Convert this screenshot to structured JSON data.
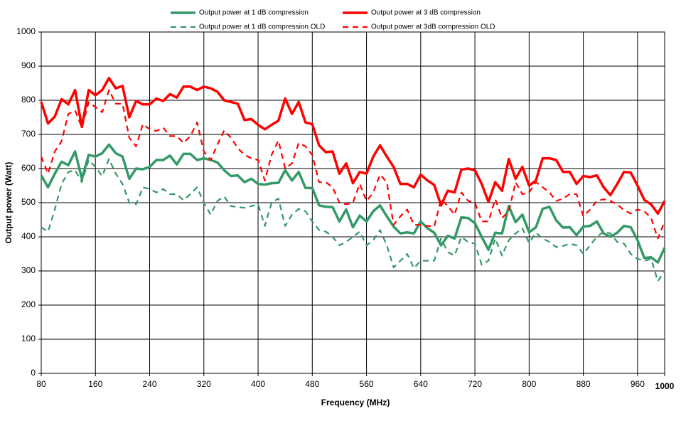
{
  "chart_data": {
    "type": "line",
    "xlabel": "Frequency (MHz)",
    "ylabel": "Output power (Watt)",
    "x": [
      80,
      90,
      100,
      110,
      120,
      130,
      140,
      150,
      160,
      170,
      180,
      190,
      200,
      210,
      220,
      230,
      240,
      250,
      260,
      270,
      280,
      290,
      300,
      310,
      320,
      330,
      340,
      350,
      360,
      370,
      380,
      390,
      400,
      410,
      420,
      430,
      440,
      450,
      460,
      470,
      480,
      490,
      500,
      510,
      520,
      530,
      540,
      550,
      560,
      570,
      580,
      590,
      600,
      610,
      620,
      630,
      640,
      650,
      660,
      670,
      680,
      690,
      700,
      710,
      720,
      730,
      740,
      750,
      760,
      770,
      780,
      790,
      800,
      810,
      820,
      830,
      840,
      850,
      860,
      870,
      880,
      890,
      900,
      910,
      920,
      930,
      940,
      950,
      960,
      970,
      980,
      990,
      1000
    ],
    "series": [
      {
        "name": "Output power at 1 dB compression",
        "color": "#339966",
        "dash": false,
        "values": [
          580,
          545,
          585,
          620,
          610,
          650,
          570,
          640,
          635,
          645,
          670,
          645,
          635,
          570,
          600,
          598,
          605,
          625,
          625,
          638,
          612,
          643,
          643,
          625,
          630,
          625,
          618,
          595,
          578,
          580,
          560,
          570,
          555,
          553,
          557,
          558,
          595,
          565,
          590,
          543,
          543,
          492,
          488,
          487,
          445,
          480,
          428,
          462,
          445,
          475,
          492,
          460,
          430,
          410,
          413,
          410,
          445,
          425,
          412,
          375,
          403,
          395,
          457,
          455,
          440,
          400,
          362,
          412,
          410,
          490,
          443,
          465,
          413,
          428,
          482,
          488,
          448,
          427,
          428,
          405,
          430,
          432,
          445,
          410,
          400,
          412,
          432,
          428,
          390,
          338,
          340,
          325,
          368
        ]
      },
      {
        "name": "Output power at 3 dB compression",
        "color": "#ff0000",
        "dash": false,
        "values": [
          795,
          732,
          752,
          803,
          788,
          830,
          722,
          830,
          815,
          830,
          865,
          835,
          842,
          750,
          798,
          788,
          788,
          805,
          798,
          818,
          808,
          840,
          840,
          830,
          840,
          835,
          825,
          800,
          795,
          790,
          742,
          745,
          728,
          715,
          728,
          740,
          805,
          760,
          795,
          735,
          730,
          668,
          648,
          650,
          585,
          615,
          557,
          590,
          585,
          635,
          668,
          635,
          605,
          555,
          555,
          545,
          582,
          565,
          552,
          492,
          535,
          530,
          597,
          600,
          595,
          555,
          502,
          560,
          535,
          628,
          570,
          605,
          550,
          565,
          630,
          630,
          625,
          590,
          590,
          555,
          578,
          575,
          580,
          545,
          522,
          555,
          590,
          588,
          550,
          508,
          495,
          468,
          505
        ]
      },
      {
        "name": "Output power at 1 dB compression OLD",
        "color": "#339966",
        "dash": true,
        "values": [
          428,
          415,
          480,
          555,
          590,
          595,
          560,
          625,
          605,
          578,
          628,
          585,
          555,
          500,
          495,
          545,
          540,
          530,
          540,
          525,
          525,
          507,
          525,
          545,
          500,
          465,
          505,
          518,
          490,
          487,
          485,
          490,
          495,
          432,
          500,
          512,
          432,
          465,
          482,
          475,
          445,
          420,
          415,
          400,
          375,
          385,
          400,
          415,
          375,
          390,
          420,
          375,
          310,
          330,
          350,
          308,
          330,
          330,
          330,
          395,
          355,
          345,
          400,
          385,
          380,
          318,
          330,
          395,
          345,
          390,
          410,
          425,
          382,
          412,
          395,
          385,
          370,
          373,
          380,
          375,
          350,
          375,
          400,
          415,
          410,
          385,
          380,
          350,
          335,
          330,
          335,
          270,
          300
        ]
      },
      {
        "name": "Output power at 3dB compression OLD",
        "color": "#ff0000",
        "dash": true,
        "values": [
          635,
          585,
          650,
          680,
          760,
          770,
          720,
          795,
          780,
          765,
          830,
          790,
          790,
          690,
          665,
          730,
          715,
          710,
          720,
          695,
          695,
          675,
          695,
          735,
          650,
          625,
          670,
          712,
          690,
          660,
          640,
          630,
          625,
          565,
          640,
          682,
          600,
          615,
          675,
          665,
          640,
          560,
          560,
          545,
          500,
          495,
          500,
          555,
          505,
          530,
          582,
          560,
          435,
          460,
          480,
          435,
          435,
          432,
          430,
          510,
          490,
          465,
          530,
          505,
          500,
          445,
          445,
          510,
          455,
          475,
          560,
          525,
          530,
          560,
          545,
          530,
          505,
          512,
          525,
          525,
          460,
          480,
          505,
          510,
          505,
          495,
          478,
          468,
          480,
          475,
          455,
          395,
          445
        ]
      }
    ],
    "xlim": [
      80,
      1000
    ],
    "xticks": [
      80,
      160,
      240,
      320,
      400,
      480,
      560,
      640,
      720,
      800,
      880,
      960,
      1000
    ],
    "ylim": [
      0,
      1000
    ],
    "yticks": [
      0,
      100,
      200,
      300,
      400,
      500,
      600,
      700,
      800,
      900,
      1000
    ],
    "grid": true,
    "legend": "top"
  }
}
